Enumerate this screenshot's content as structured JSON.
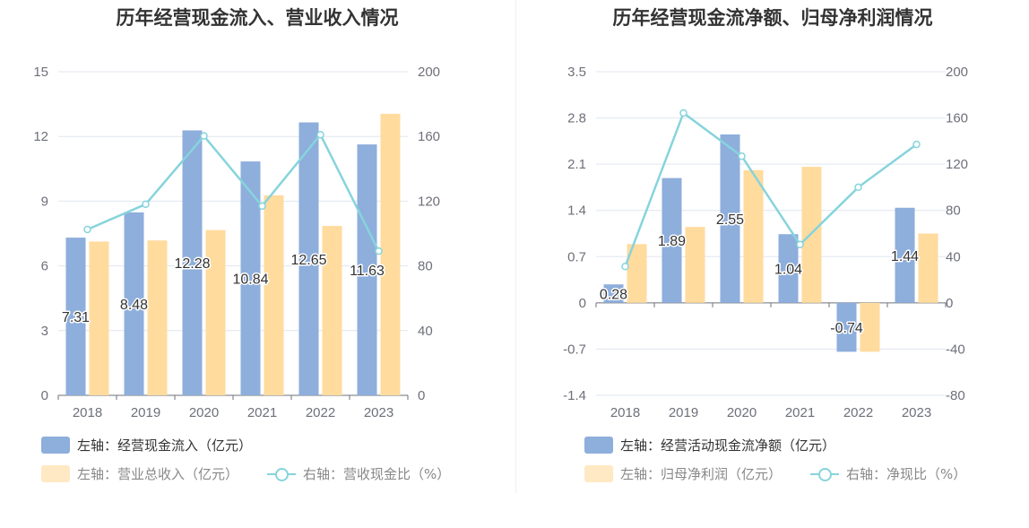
{
  "colors": {
    "bar1": "#8eaedc",
    "bar2": "#ffdb9e",
    "line": "#86d4dc",
    "grid": "#e0e6f1",
    "axis": "#6e7079",
    "label": "#333333"
  },
  "chart_data": [
    {
      "type": "bar",
      "title": "历年经营现金流入、营业收入情况",
      "categories": [
        "2018",
        "2019",
        "2020",
        "2021",
        "2022",
        "2023"
      ],
      "left_ticks": [
        "0",
        "3",
        "6",
        "9",
        "12",
        "15"
      ],
      "right_ticks": [
        "0",
        "40",
        "80",
        "120",
        "160",
        "200"
      ],
      "ylim_left": [
        0,
        15
      ],
      "ylim_right": [
        0,
        200
      ],
      "series": [
        {
          "name": "左轴：经营现金流入（亿元）",
          "type": "bar",
          "axis": "left",
          "values": [
            7.31,
            8.48,
            12.28,
            10.84,
            12.65,
            11.63
          ],
          "labels": [
            "7.31",
            "8.48",
            "12.28",
            "10.84",
            "12.65",
            "11.63"
          ]
        },
        {
          "name": "左轴：营业总收入（亿元）",
          "type": "bar",
          "axis": "left",
          "values": [
            7.13,
            7.18,
            7.66,
            9.27,
            7.85,
            13.05
          ]
        },
        {
          "name": "右轴：营收现金比（%）",
          "type": "line",
          "axis": "right",
          "values": [
            102.5,
            118.1,
            160.3,
            117.0,
            161.1,
            89.1
          ]
        }
      ]
    },
    {
      "type": "bar",
      "title": "历年经营现金流净额、归母净利润情况",
      "categories": [
        "2018",
        "2019",
        "2020",
        "2021",
        "2022",
        "2023"
      ],
      "left_ticks": [
        "-1.4",
        "-0.7",
        "0",
        "0.7",
        "1.4",
        "2.1",
        "2.8",
        "3.5"
      ],
      "right_ticks": [
        "-80",
        "-40",
        "0",
        "40",
        "80",
        "120",
        "160",
        "200"
      ],
      "ylim_left": [
        -1.4,
        3.5
      ],
      "ylim_right": [
        -80,
        200
      ],
      "series": [
        {
          "name": "左轴：经营活动现金流净额（亿元）",
          "type": "bar",
          "axis": "left",
          "values": [
            0.28,
            1.89,
            2.55,
            1.04,
            -0.74,
            1.44
          ],
          "labels": [
            "0.28",
            "1.89",
            "2.55",
            "1.04",
            "-0.74",
            "1.44"
          ]
        },
        {
          "name": "左轴：归母净利润（亿元）",
          "type": "bar",
          "axis": "left",
          "values": [
            0.89,
            1.15,
            2.01,
            2.06,
            -0.74,
            1.05
          ]
        },
        {
          "name": "右轴：净现比（%）",
          "type": "line",
          "axis": "right",
          "values": [
            31.5,
            164.3,
            126.9,
            50.5,
            100.0,
            137.1
          ]
        }
      ]
    }
  ]
}
